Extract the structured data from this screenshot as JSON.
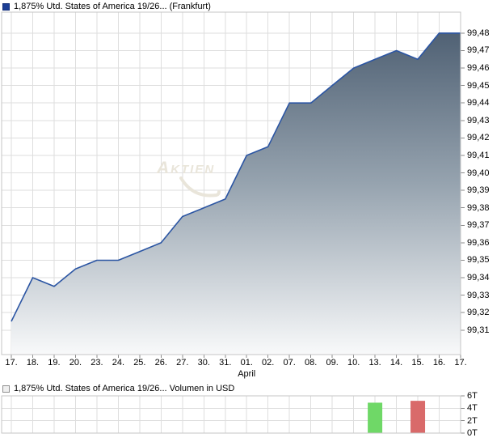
{
  "price_chart": {
    "title": "1,875% Utd. States of America 19/26... (Frankfurt)",
    "swatch_fill": "#1c3e95",
    "swatch_border": "#142f7a"
  },
  "volume_chart": {
    "title": "1,875% Utd. States of America 19/26... Volumen in USD",
    "swatch_fill": "#efefef",
    "swatch_border": "#8f8f8f"
  },
  "watermark": {
    "text": "Aktien",
    "color": "#e9e5da"
  },
  "colors": {
    "grid": "#dedede",
    "plot_border": "#c6c6c6",
    "tick_mark": "#8a8a8a",
    "line": "#2b55a3",
    "fill_top": "#46586c",
    "fill_mid": "#96a3af",
    "fill_bottom": "#f8f9fa"
  },
  "chart_data": [
    {
      "type": "area",
      "title": "1,875% Utd. States of America 19/26... (Frankfurt)",
      "x": [
        "17.",
        "18.",
        "19.",
        "20.",
        "23.",
        "24.",
        "25.",
        "26.",
        "27.",
        "30.",
        "31.",
        "01.",
        "02.",
        "07.",
        "08.",
        "09.",
        "10.",
        "13.",
        "14.",
        "15.",
        "16.",
        "17."
      ],
      "values": [
        99.315,
        99.34,
        99.335,
        99.345,
        99.35,
        99.35,
        99.355,
        99.36,
        99.375,
        99.38,
        99.385,
        99.41,
        99.415,
        99.44,
        99.44,
        99.45,
        99.46,
        99.465,
        99.47,
        99.465,
        99.48,
        99.48
      ],
      "y_tick_labels": [
        "99,48",
        "99,47",
        "99,46",
        "99,45",
        "99,44",
        "99,43",
        "99,42",
        "99,41",
        "99,40",
        "99,39",
        "99,38",
        "99,37",
        "99,36",
        "99,35",
        "99,34",
        "99,33",
        "99,32",
        "99,31"
      ],
      "ylim": [
        99.296,
        99.492
      ],
      "x_month_label": {
        "text": "April",
        "anchor": "01."
      },
      "grid": true,
      "legend_position": "top-left"
    },
    {
      "type": "bar",
      "title": "1,875% Utd. States of America 19/26... Volumen in USD",
      "x": [
        "17.",
        "18.",
        "19.",
        "20.",
        "23.",
        "24.",
        "25.",
        "26.",
        "27.",
        "30.",
        "31.",
        "01.",
        "02.",
        "07.",
        "08.",
        "09.",
        "10.",
        "13.",
        "14.",
        "15.",
        "16.",
        "17."
      ],
      "values": [
        0,
        0,
        0,
        0,
        0,
        0,
        0,
        0,
        0,
        0,
        0,
        0,
        0,
        0,
        0,
        0,
        0,
        4900,
        0,
        5200,
        0,
        0
      ],
      "unit": "USD",
      "y_tick_labels": [
        "6T",
        "4T",
        "2T",
        "0T"
      ],
      "ylim": [
        0,
        6000
      ],
      "bar_colors": {
        "17": "#6fd867",
        "19": "#d96a6a"
      },
      "grid": true
    }
  ]
}
